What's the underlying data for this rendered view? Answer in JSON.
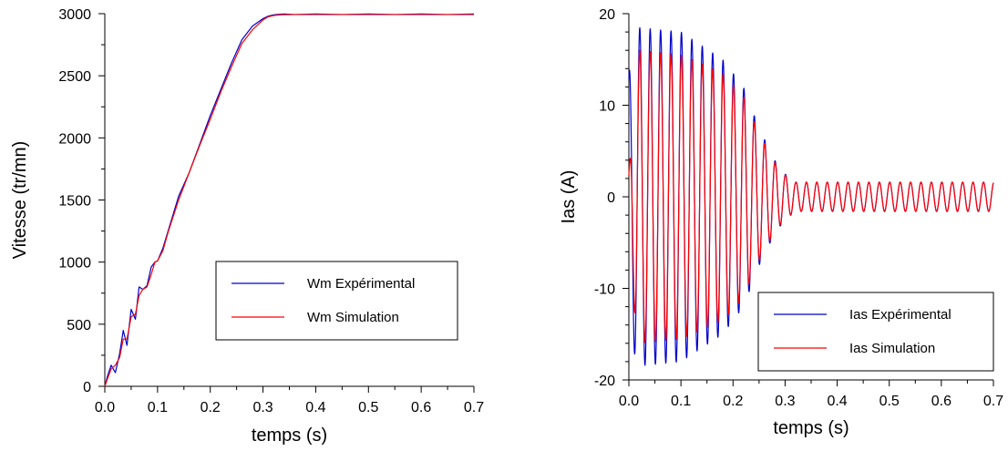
{
  "chart_data": [
    {
      "type": "line",
      "xlabel": "temps (s)",
      "ylabel": "Vitesse (tr/mn)",
      "xlim": [
        0,
        0.7
      ],
      "ylim": [
        0,
        3000
      ],
      "xticks": [
        "0.0",
        "0.1",
        "0.2",
        "0.3",
        "0.4",
        "0.5",
        "0.6",
        "0.7"
      ],
      "yticks": [
        "0",
        "500",
        "1000",
        "1500",
        "2000",
        "2500",
        "3000"
      ],
      "grid": false,
      "legend_position": "bottom-right",
      "series": [
        {
          "name": "Wm Expérimental",
          "color": "#0000cc",
          "x": [
            0,
            0.005,
            0.012,
            0.02,
            0.028,
            0.035,
            0.042,
            0.05,
            0.058,
            0.065,
            0.072,
            0.08,
            0.088,
            0.095,
            0.1,
            0.11,
            0.12,
            0.14,
            0.16,
            0.18,
            0.2,
            0.22,
            0.24,
            0.26,
            0.28,
            0.3,
            0.31,
            0.32,
            0.33,
            0.34,
            0.36,
            0.4,
            0.45,
            0.5,
            0.55,
            0.6,
            0.65,
            0.7
          ],
          "y": [
            0,
            80,
            170,
            110,
            260,
            450,
            330,
            620,
            540,
            800,
            780,
            810,
            960,
            1000,
            1010,
            1110,
            1250,
            1530,
            1720,
            1950,
            2180,
            2390,
            2600,
            2790,
            2900,
            2960,
            2980,
            2990,
            2995,
            2997,
            2993,
            2997,
            2993,
            2997,
            2993,
            2997,
            2993,
            2997
          ]
        },
        {
          "name": "Wm Simulation",
          "color": "#ff0000",
          "x": [
            0,
            0.005,
            0.012,
            0.02,
            0.028,
            0.035,
            0.042,
            0.05,
            0.058,
            0.065,
            0.072,
            0.08,
            0.088,
            0.095,
            0.1,
            0.11,
            0.12,
            0.14,
            0.16,
            0.18,
            0.2,
            0.22,
            0.24,
            0.26,
            0.28,
            0.3,
            0.31,
            0.32,
            0.33,
            0.34,
            0.36,
            0.4,
            0.45,
            0.5,
            0.55,
            0.6,
            0.65,
            0.7
          ],
          "y": [
            0,
            60,
            140,
            170,
            230,
            380,
            380,
            560,
            580,
            730,
            780,
            800,
            900,
            1000,
            1010,
            1090,
            1240,
            1500,
            1720,
            1940,
            2150,
            2370,
            2570,
            2760,
            2870,
            2950,
            2975,
            2985,
            2990,
            2992,
            2993,
            2993,
            2993,
            2993,
            2993,
            2993,
            2993,
            2993
          ]
        }
      ]
    },
    {
      "type": "line",
      "xlabel": "temps (s)",
      "ylabel": "Ias (A)",
      "xlim": [
        0,
        0.7
      ],
      "ylim": [
        -20,
        20
      ],
      "xticks": [
        "0.0",
        "0.1",
        "0.2",
        "0.3",
        "0.4",
        "0.5",
        "0.6",
        "0.7"
      ],
      "yticks": [
        "-20",
        "-10",
        "0",
        "10",
        "20"
      ],
      "grid": false,
      "legend_position": "bottom-right",
      "series": [
        {
          "name": "Ias Expérimental",
          "color": "#0000cc",
          "frequency_hz": 50,
          "envelope_t": [
            0,
            0.015,
            0.1,
            0.18,
            0.22,
            0.25,
            0.28,
            0.3,
            0.32,
            0.7
          ],
          "envelope_amp": [
            13.5,
            18.5,
            18,
            15,
            12,
            7.5,
            4,
            2.5,
            1.6,
            1.6
          ]
        },
        {
          "name": "Ias Simulation",
          "color": "#ff0000",
          "frequency_hz": 50,
          "envelope_t": [
            0,
            0.015,
            0.1,
            0.18,
            0.22,
            0.25,
            0.28,
            0.3,
            0.32,
            0.7
          ],
          "envelope_amp": [
            2.5,
            16,
            15.5,
            13.5,
            11,
            7,
            3.8,
            2.4,
            1.6,
            1.6
          ]
        }
      ]
    }
  ]
}
